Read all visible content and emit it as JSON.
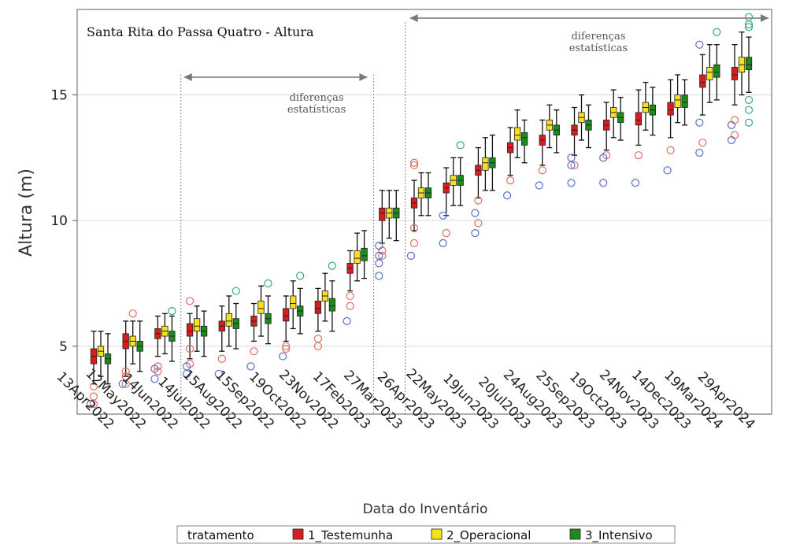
{
  "chart_data": {
    "type": "boxplot",
    "title": "Santa Rita do Passa Quatro - Altura",
    "xlabel": "Data do Inventário",
    "ylabel": "Altura (m)",
    "ylim": [
      2.3,
      18.4
    ],
    "yticks": [
      5,
      10,
      15
    ],
    "grid": "horizontal",
    "legend": {
      "title": "tratamento",
      "placement": "bottom",
      "entries": [
        {
          "name": "1_Testemunha",
          "color": "#d71e1e"
        },
        {
          "name": "2_Operacional",
          "color": "#f5e21a"
        },
        {
          "name": "3_Intensivo",
          "color": "#1e8a1e"
        }
      ]
    },
    "categories": [
      "13Apr2022",
      "12May2022",
      "14Jun2022",
      "14Jul2022",
      "15Aug2022",
      "15Sep2022",
      "19Oct2022",
      "23Nov2022",
      "17Feb2023",
      "27Mar2023",
      "26Apr2023",
      "22May2023",
      "19Jun2023",
      "20Jul2023",
      "24Aug2023",
      "25Sep2023",
      "19Oct2023",
      "24Nov2023",
      "14Dec2023",
      "19Mar2024",
      "29Apr2024"
    ],
    "annotations": [
      {
        "text_lines": [
          "diferenças",
          "estatísticas"
        ],
        "from": "14Jul2022",
        "to": "17Feb2023"
      },
      {
        "text_lines": [
          "diferenças",
          "estatísticas"
        ],
        "from": "26Apr2023",
        "to": "29Apr2024"
      }
    ],
    "series": [
      {
        "name": "1_Testemunha",
        "color": "#d71e1e",
        "outlier_color": "#e07060",
        "q1": [
          4.3,
          4.9,
          5.3,
          5.4,
          5.6,
          5.8,
          6.0,
          6.3,
          7.9,
          10.0,
          10.5,
          11.1,
          11.8,
          12.7,
          13.0,
          13.4,
          13.6,
          13.8,
          14.2,
          15.3,
          15.6
        ],
        "median": [
          4.6,
          5.2,
          5.5,
          5.6,
          5.8,
          6.0,
          6.2,
          6.5,
          8.1,
          10.3,
          10.7,
          11.3,
          12.0,
          12.9,
          13.2,
          13.6,
          13.8,
          14.0,
          14.4,
          15.5,
          15.8
        ],
        "q3": [
          4.9,
          5.5,
          5.7,
          5.9,
          6.0,
          6.2,
          6.5,
          6.8,
          8.3,
          10.5,
          10.9,
          11.5,
          12.2,
          13.1,
          13.4,
          13.8,
          14.0,
          14.3,
          14.7,
          15.8,
          16.1
        ],
        "whisker_low": [
          3.5,
          3.8,
          4.6,
          4.5,
          4.8,
          5.2,
          5.2,
          5.6,
          7.2,
          9.1,
          9.6,
          10.2,
          10.9,
          11.8,
          12.2,
          12.6,
          12.8,
          13.0,
          13.3,
          14.2,
          14.6
        ],
        "whisker_high": [
          5.6,
          6.0,
          6.2,
          6.3,
          6.6,
          6.7,
          7.0,
          7.3,
          8.8,
          11.2,
          11.6,
          12.1,
          12.9,
          13.7,
          14.0,
          14.5,
          14.7,
          15.2,
          15.6,
          16.6,
          17.0
        ],
        "outliers": [
          [
            3.4,
            3.0,
            2.7
          ],
          [
            3.8,
            3.5,
            4.0
          ],
          [
            4.0,
            4.2
          ],
          [
            4.3,
            4.9,
            6.8
          ],
          [
            4.5
          ],
          [
            4.8
          ],
          [
            4.9,
            5.0
          ],
          [
            5.0,
            5.3
          ],
          [
            6.6,
            7.0
          ],
          [
            8.6,
            8.8
          ],
          [
            9.1,
            9.7,
            12.2,
            12.3
          ],
          [
            9.5
          ],
          [
            9.9,
            10.8
          ],
          [
            11.6
          ],
          [
            12.0
          ],
          [
            12.2
          ],
          [
            12.6
          ],
          [
            12.6
          ],
          [
            12.8
          ],
          [
            13.1
          ],
          [
            13.4,
            14.0
          ]
        ],
        "low_outliers_blue": [
          [
            2.7
          ],
          [
            3.5
          ],
          [
            3.7,
            4.1
          ],
          [
            3.9,
            4.2
          ],
          [
            3.9
          ],
          [
            4.2
          ],
          [
            4.6
          ],
          [],
          [
            6.0
          ],
          [
            7.8,
            8.3,
            8.6,
            9.0
          ],
          [
            8.6
          ],
          [
            9.1,
            10.2
          ],
          [
            9.5,
            10.3
          ],
          [
            11.0
          ],
          [
            11.4
          ],
          [
            11.5,
            12.2,
            12.5
          ],
          [
            11.5,
            12.5
          ],
          [
            11.5
          ],
          [
            12.0
          ],
          [
            12.7,
            13.9,
            17.0
          ],
          [
            13.2,
            13.8
          ]
        ]
      },
      {
        "name": "2_Operacional",
        "color": "#f5e21a",
        "outlier_color": "#e07060",
        "q1": [
          4.6,
          5.0,
          5.4,
          5.6,
          5.8,
          6.3,
          6.5,
          6.8,
          8.3,
          10.1,
          10.9,
          11.4,
          12.0,
          13.2,
          13.6,
          13.9,
          14.1,
          14.3,
          14.5,
          15.6,
          15.9
        ],
        "median": [
          4.8,
          5.2,
          5.6,
          5.8,
          6.0,
          6.5,
          6.7,
          7.0,
          8.5,
          10.3,
          11.1,
          11.6,
          12.3,
          13.4,
          13.8,
          14.1,
          14.3,
          14.5,
          14.8,
          15.9,
          16.2
        ],
        "q3": [
          5.0,
          5.4,
          5.8,
          6.1,
          6.3,
          6.8,
          7.0,
          7.2,
          8.8,
          10.5,
          11.3,
          11.8,
          12.5,
          13.7,
          14.0,
          14.3,
          14.5,
          14.7,
          15.0,
          16.1,
          16.5
        ],
        "whisker_low": [
          3.8,
          4.3,
          4.7,
          4.8,
          5.0,
          5.4,
          5.7,
          6.0,
          7.6,
          9.3,
          10.2,
          10.6,
          11.2,
          12.5,
          12.9,
          13.2,
          13.3,
          13.6,
          13.9,
          14.7,
          15.0
        ],
        "whisker_high": [
          5.6,
          6.0,
          6.3,
          6.6,
          7.0,
          7.4,
          7.6,
          7.9,
          9.5,
          11.2,
          11.9,
          12.5,
          13.3,
          14.4,
          14.6,
          15.0,
          15.2,
          15.5,
          15.8,
          17.0,
          17.5
        ],
        "outliers": [
          [],
          [
            6.3
          ],
          [],
          [],
          [],
          [],
          [],
          [],
          [],
          [],
          [],
          [],
          [],
          [],
          [],
          [],
          [],
          [],
          [],
          [],
          []
        ]
      },
      {
        "name": "3_Intensivo",
        "color": "#1e8a1e",
        "outlier_color": "#3aa58c",
        "q1": [
          4.3,
          4.8,
          5.2,
          5.4,
          5.7,
          5.9,
          6.2,
          6.4,
          8.4,
          10.1,
          10.9,
          11.4,
          12.1,
          13.0,
          13.4,
          13.6,
          13.9,
          14.2,
          14.5,
          15.7,
          16.0
        ],
        "median": [
          4.5,
          5.0,
          5.4,
          5.6,
          5.9,
          6.1,
          6.4,
          6.6,
          8.6,
          10.3,
          11.1,
          11.6,
          12.3,
          13.3,
          13.6,
          13.8,
          14.1,
          14.4,
          14.7,
          15.9,
          16.2
        ],
        "q3": [
          4.7,
          5.2,
          5.6,
          5.8,
          6.1,
          6.3,
          6.6,
          6.9,
          8.9,
          10.5,
          11.3,
          11.8,
          12.5,
          13.5,
          13.8,
          14.0,
          14.3,
          14.6,
          15.0,
          16.2,
          16.5
        ],
        "whisker_low": [
          3.5,
          4.0,
          4.4,
          4.6,
          4.9,
          5.1,
          5.5,
          5.6,
          7.7,
          9.2,
          10.2,
          10.6,
          11.2,
          12.3,
          12.7,
          12.9,
          13.2,
          13.4,
          13.8,
          14.8,
          15.1
        ],
        "whisker_high": [
          5.5,
          6.0,
          6.2,
          6.4,
          6.7,
          7.0,
          7.3,
          7.6,
          9.6,
          11.2,
          11.9,
          12.5,
          13.4,
          14.0,
          14.4,
          14.6,
          14.9,
          15.3,
          15.6,
          17.0,
          17.3
        ],
        "outliers": [
          [],
          [],
          [
            6.4
          ],
          [],
          [
            7.2
          ],
          [
            7.5
          ],
          [
            7.8
          ],
          [
            8.2
          ],
          [],
          [],
          [],
          [
            13.0
          ],
          [],
          [],
          [],
          [],
          [],
          [],
          [],
          [
            17.5
          ],
          [
            17.7,
            17.8,
            18.1,
            14.4,
            13.9,
            14.8
          ]
        ]
      }
    ]
  }
}
